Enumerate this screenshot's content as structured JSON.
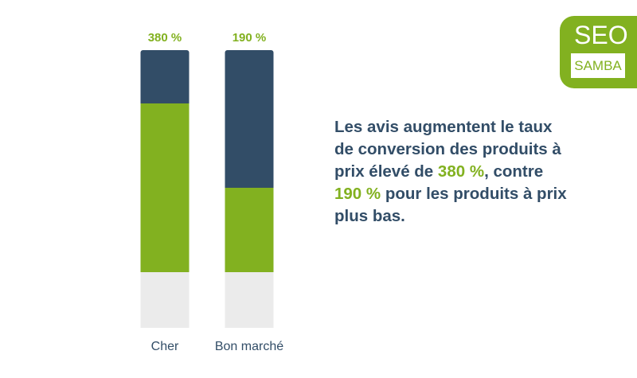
{
  "chart_data": {
    "type": "bar",
    "stacked": true,
    "categories": [
      "Cher",
      "Bon marché"
    ],
    "top_labels": [
      "380 %",
      "190 %"
    ],
    "values": [
      380,
      190
    ],
    "colors": {
      "filled": "#82b120",
      "upper": "#324d67",
      "base": "#ebebeb",
      "label": "#82b120",
      "category": "#324d67"
    },
    "ylim": [
      0,
      500
    ],
    "grid": false,
    "legend": "none"
  },
  "message": {
    "part1": "Les avis augmentent le taux de conversion des produits à prix élevé de ",
    "hl1": "380 %",
    "part2": ", contre ",
    "hl2": "190 %",
    "part3": " pour les produits à prix plus bas."
  },
  "logo": {
    "line1": "SEO",
    "line2": "SAMBA"
  }
}
